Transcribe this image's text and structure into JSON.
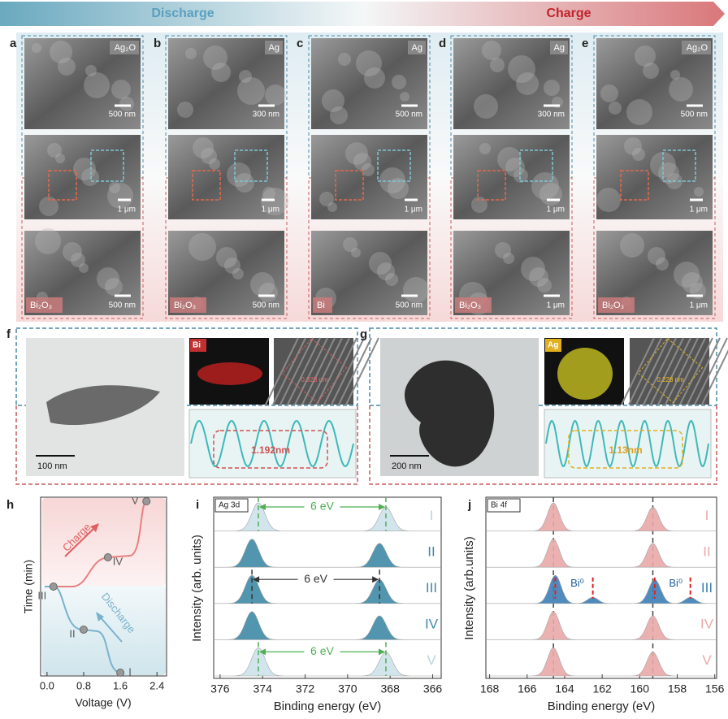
{
  "header": {
    "left": "Discharge",
    "right": "Charge"
  },
  "sem": [
    {
      "letter": "a",
      "top_label": "Ag₂O",
      "top_scale": "500 nm",
      "mid_scale": "1 μm",
      "bottom_label": "Bi₂O₃",
      "bottom_scale": "500 nm"
    },
    {
      "letter": "b",
      "top_label": "Ag",
      "top_scale": "300 nm",
      "mid_scale": "1 μm",
      "bottom_label": "Bi₂O₃",
      "bottom_scale": "500 nm"
    },
    {
      "letter": "c",
      "top_label": "Ag",
      "top_scale": "500 nm",
      "mid_scale": "1 μm",
      "bottom_label": "Bi",
      "bottom_scale": "500 nm"
    },
    {
      "letter": "d",
      "top_label": "Ag",
      "top_scale": "300 nm",
      "mid_scale": "1 μm",
      "bottom_label": "Bi₂O₃",
      "bottom_scale": "1 μm"
    },
    {
      "letter": "e",
      "top_label": "Ag₂O",
      "top_scale": "500 nm",
      "mid_scale": "1 μm",
      "bottom_label": "Bi₂O₃",
      "bottom_scale": "1 μm"
    }
  ],
  "tem": [
    {
      "letter": "f",
      "element": "Bi",
      "scale": "100 nm",
      "lattice": "0.328 nm",
      "period": "1.192nm"
    },
    {
      "letter": "g",
      "element": "Ag",
      "scale": "200 nm",
      "lattice": "0.228 nm",
      "period": "1.13nm"
    }
  ],
  "panel_h": {
    "letter": "h",
    "ylabel": "Time (min)",
    "xlabel": "Voltage (V)",
    "xlim": [
      -0.14,
      2.61
    ],
    "xticks": [
      {
        "value": 0,
        "label": "0.0"
      },
      0.8,
      1.6,
      2.4
    ],
    "charge_label": "Charge",
    "discharge_label": "Discharge",
    "points": [
      {
        "label": "I",
        "voltage": 1.6
      },
      {
        "label": "II",
        "voltage": 0.8
      },
      {
        "label": "III",
        "voltage": 0.14
      },
      {
        "label": "IV",
        "voltage": 1.33
      },
      {
        "label": "V",
        "voltage": 2.17
      }
    ]
  },
  "panel_i": {
    "letter": "i",
    "tag": "Ag 3d",
    "ylabel": "Intensity (arb. units)",
    "xlabel": "Binding energy (eV)",
    "xlim": [
      376.3,
      365.6
    ],
    "xticks": [
      376,
      374,
      372,
      370,
      368,
      366
    ],
    "spectra": [
      {
        "label": "I",
        "color": "#cfe3ea",
        "peaks": [
          374.2,
          368.2
        ]
      },
      {
        "label": "II",
        "color": "#3f8aa6",
        "peaks": [
          374.5,
          368.5
        ]
      },
      {
        "label": "III",
        "color": "#3f8aa6",
        "peaks": [
          374.5,
          368.5
        ]
      },
      {
        "label": "IV",
        "color": "#3f8aa6",
        "peaks": [
          374.5,
          368.5
        ]
      },
      {
        "label": "V",
        "color": "#cfe3ea",
        "peaks": [
          374.2,
          368.2
        ]
      }
    ],
    "splits": [
      {
        "label": "6 eV",
        "spectrum": 0,
        "from": 374.2,
        "to": 368.2,
        "color": "#4caf50"
      },
      {
        "label": "6 eV",
        "spectrum": 2,
        "from": 374.5,
        "to": 368.5,
        "color": "#333333"
      },
      {
        "label": "6 eV",
        "spectrum": 4,
        "from": 374.2,
        "to": 368.2,
        "color": "#4caf50"
      }
    ]
  },
  "panel_j": {
    "letter": "j",
    "tag": "Bi 4f",
    "ylabel": "Intensity (arb.units)",
    "xlabel": "Binding energy (eV)",
    "xlim": [
      168.2,
      155.9
    ],
    "xticks": [
      168,
      166,
      164,
      162,
      160,
      158,
      156
    ],
    "reference_lines": [
      164.6,
      159.3
    ],
    "spectra": [
      {
        "label": "I",
        "color": "#e9a9a9",
        "peaks": [
          164.6,
          159.3
        ]
      },
      {
        "label": "II",
        "color": "#e9a9a9",
        "peaks": [
          164.6,
          159.3
        ]
      },
      {
        "label": "III",
        "color": "#3e7fb8",
        "peaks": [
          164.5,
          159.2
        ],
        "minor_peaks": [
          162.5,
          157.3
        ],
        "minor_label": "Bi⁰"
      },
      {
        "label": "IV",
        "color": "#e9a9a9",
        "peaks": [
          164.6,
          159.3
        ]
      },
      {
        "label": "V",
        "color": "#e9a9a9",
        "peaks": [
          164.6,
          159.3
        ]
      }
    ]
  }
}
